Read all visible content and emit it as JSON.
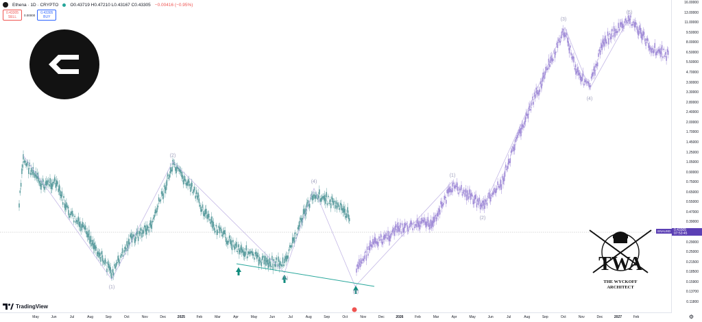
{
  "header": {
    "symbol": "Ethena · 1D · CRYPTO",
    "ohlc": "O0.43719 H0.47210 L0.43167 C0.43305",
    "change": "−0.00416 (−0.95%)"
  },
  "trade": {
    "sell_price": "0.43305",
    "sell_label": "SELL",
    "spread": "0.00000",
    "buy_price": "0.43305",
    "buy_label": "BUY"
  },
  "price_tag": {
    "symbol": "ENAUSD",
    "price": "0.43305",
    "countdown": "07:53:45"
  },
  "y_ticks": [
    "16.00000",
    "13.00000",
    "11.00000",
    "9.50000",
    "8.00000",
    "6.50000",
    "5.50000",
    "4.70000",
    "3.90000",
    "3.30000",
    "2.80000",
    "2.40000",
    "2.00000",
    "1.70000",
    "1.45000",
    "1.25000",
    "1.05000",
    "0.90000",
    "0.75000",
    "0.65000",
    "0.55000",
    "0.47000",
    "0.39000",
    "0.34000",
    "0.29000",
    "0.25000",
    "0.21500",
    "0.18500",
    "0.15900",
    "0.13700",
    "0.11800"
  ],
  "x_ticks": [
    "May",
    "Jun",
    "Jul",
    "Aug",
    "Sep",
    "Oct",
    "Nov",
    "Dec",
    "2025",
    "Feb",
    "Mar",
    "Apr",
    "May",
    "Jun",
    "Jul",
    "Aug",
    "Sep",
    "Oct",
    "Nov",
    "Dec",
    "2026",
    "Feb",
    "Mar",
    "Apr",
    "May",
    "Jun",
    "Jul",
    "Aug",
    "Sep",
    "Oct",
    "Nov",
    "Dec",
    "2027",
    "Feb"
  ],
  "wave_labels": [
    "(1)",
    "(2)",
    "(3)",
    "(4)",
    "(5)",
    "(1)",
    "(2)",
    "(3)",
    "(4)",
    "(5)"
  ],
  "branding": {
    "platform": "TradingView",
    "watermark_line1": "THE WYCKOFF",
    "watermark_line2": "ARCHITECT",
    "watermark_initials": "TWA"
  },
  "colors": {
    "candles": "#5e9ea0",
    "projection": "#a38fd8",
    "trendline": "#26a69a",
    "tag": "#5b3fb4"
  }
}
